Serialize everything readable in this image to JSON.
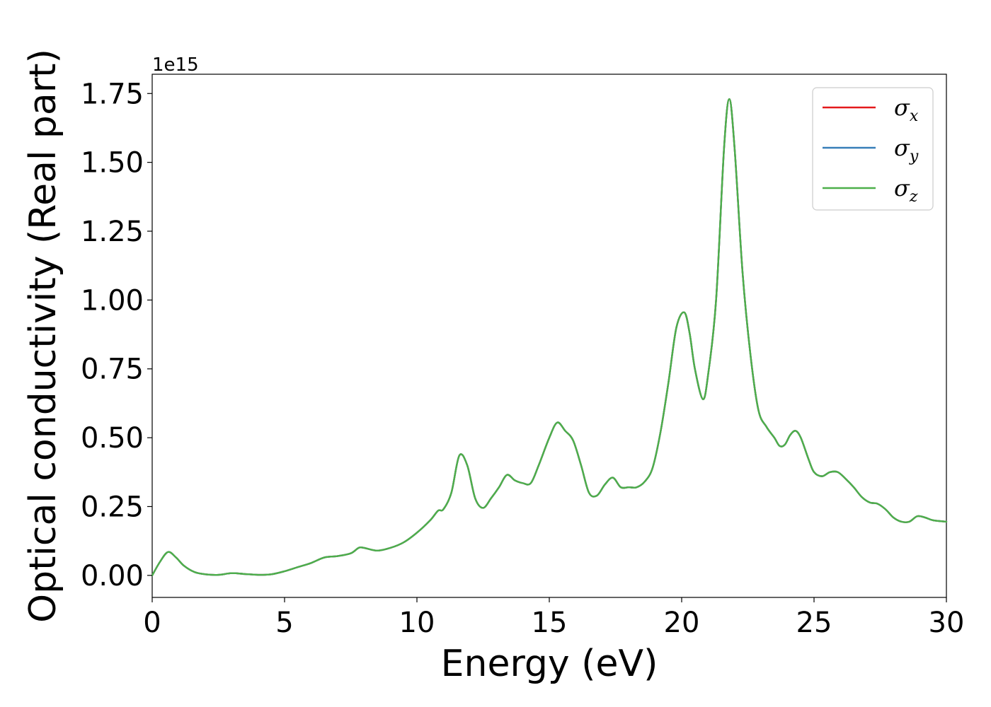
{
  "chart_data": {
    "type": "line",
    "title": "",
    "xlabel": "Energy (eV)",
    "ylabel": "Optical conductivity (Real part)",
    "y_offset_label": "1e15",
    "y_scale": 1000000000000000.0,
    "xlim": [
      0,
      30
    ],
    "ylim": [
      -0.08,
      1.82
    ],
    "xticks": [
      0,
      5,
      10,
      15,
      20,
      25,
      30
    ],
    "xtick_labels": [
      "0",
      "5",
      "10",
      "15",
      "20",
      "25",
      "30"
    ],
    "yticks": [
      0,
      0.25,
      0.5,
      0.75,
      1.0,
      1.25,
      1.5,
      1.75
    ],
    "ytick_labels": [
      "0.00",
      "0.25",
      "0.50",
      "0.75",
      "1.00",
      "1.25",
      "1.50",
      "1.75"
    ],
    "grid": false,
    "legend_position": "top-right",
    "x": [
      0,
      0.3,
      0.6,
      0.9,
      1.2,
      1.6,
      2.0,
      2.5,
      3.0,
      3.5,
      4.0,
      4.5,
      5.0,
      5.5,
      6.0,
      6.5,
      7.0,
      7.5,
      7.8,
      8.0,
      8.5,
      9.0,
      9.5,
      10.0,
      10.5,
      10.8,
      11.0,
      11.3,
      11.6,
      11.9,
      12.2,
      12.5,
      12.8,
      13.1,
      13.4,
      13.7,
      14.0,
      14.3,
      14.6,
      15.0,
      15.3,
      15.6,
      15.9,
      16.2,
      16.5,
      16.8,
      17.1,
      17.4,
      17.7,
      18.0,
      18.3,
      18.6,
      18.9,
      19.2,
      19.5,
      19.8,
      20.1,
      20.3,
      20.5,
      20.8,
      21.0,
      21.3,
      21.6,
      21.8,
      22.0,
      22.3,
      22.6,
      22.9,
      23.2,
      23.5,
      23.7,
      23.9,
      24.1,
      24.3,
      24.5,
      24.8,
      25.0,
      25.3,
      25.6,
      25.9,
      26.2,
      26.5,
      26.8,
      27.1,
      27.4,
      27.7,
      28.0,
      28.3,
      28.6,
      28.9,
      29.2,
      29.5,
      30.0
    ],
    "series": [
      {
        "name": "σ_x",
        "label_main": "σ",
        "label_sub": "x",
        "color": "#e41a1c",
        "values": [
          0.0,
          0.05,
          0.085,
          0.065,
          0.035,
          0.012,
          0.004,
          0.002,
          0.008,
          0.005,
          0.002,
          0.004,
          0.015,
          0.03,
          0.045,
          0.065,
          0.07,
          0.08,
          0.1,
          0.1,
          0.09,
          0.1,
          0.12,
          0.155,
          0.2,
          0.235,
          0.24,
          0.3,
          0.435,
          0.4,
          0.28,
          0.245,
          0.28,
          0.32,
          0.365,
          0.345,
          0.335,
          0.335,
          0.4,
          0.5,
          0.555,
          0.525,
          0.49,
          0.4,
          0.3,
          0.29,
          0.33,
          0.355,
          0.32,
          0.32,
          0.32,
          0.34,
          0.39,
          0.52,
          0.7,
          0.9,
          0.955,
          0.88,
          0.75,
          0.64,
          0.73,
          1.0,
          1.55,
          1.73,
          1.55,
          1.1,
          0.8,
          0.6,
          0.54,
          0.5,
          0.47,
          0.475,
          0.51,
          0.525,
          0.5,
          0.42,
          0.375,
          0.36,
          0.375,
          0.375,
          0.35,
          0.32,
          0.285,
          0.265,
          0.26,
          0.24,
          0.21,
          0.195,
          0.195,
          0.215,
          0.21,
          0.2,
          0.195
        ]
      },
      {
        "name": "σ_y",
        "label_main": "σ",
        "label_sub": "y",
        "color": "#377eb8",
        "values": [
          0.0,
          0.05,
          0.085,
          0.065,
          0.035,
          0.012,
          0.004,
          0.002,
          0.008,
          0.005,
          0.002,
          0.004,
          0.015,
          0.03,
          0.045,
          0.065,
          0.07,
          0.08,
          0.1,
          0.1,
          0.09,
          0.1,
          0.12,
          0.155,
          0.2,
          0.235,
          0.24,
          0.3,
          0.435,
          0.4,
          0.28,
          0.245,
          0.28,
          0.32,
          0.365,
          0.345,
          0.335,
          0.335,
          0.4,
          0.5,
          0.555,
          0.525,
          0.49,
          0.4,
          0.3,
          0.29,
          0.33,
          0.355,
          0.32,
          0.32,
          0.32,
          0.34,
          0.39,
          0.52,
          0.7,
          0.9,
          0.955,
          0.88,
          0.75,
          0.64,
          0.73,
          1.0,
          1.55,
          1.73,
          1.55,
          1.1,
          0.8,
          0.6,
          0.54,
          0.5,
          0.47,
          0.475,
          0.51,
          0.525,
          0.5,
          0.42,
          0.375,
          0.36,
          0.375,
          0.375,
          0.35,
          0.32,
          0.285,
          0.265,
          0.26,
          0.24,
          0.21,
          0.195,
          0.195,
          0.215,
          0.21,
          0.2,
          0.195
        ]
      },
      {
        "name": "σ_z",
        "label_main": "σ",
        "label_sub": "z",
        "color": "#4daf4a",
        "values": [
          0.0,
          0.05,
          0.085,
          0.065,
          0.035,
          0.012,
          0.004,
          0.002,
          0.008,
          0.005,
          0.002,
          0.004,
          0.015,
          0.03,
          0.045,
          0.065,
          0.07,
          0.08,
          0.1,
          0.1,
          0.09,
          0.1,
          0.12,
          0.155,
          0.2,
          0.235,
          0.24,
          0.3,
          0.435,
          0.4,
          0.28,
          0.245,
          0.28,
          0.32,
          0.365,
          0.345,
          0.335,
          0.335,
          0.4,
          0.5,
          0.555,
          0.525,
          0.49,
          0.4,
          0.3,
          0.29,
          0.33,
          0.355,
          0.32,
          0.32,
          0.32,
          0.34,
          0.39,
          0.52,
          0.7,
          0.9,
          0.955,
          0.88,
          0.75,
          0.64,
          0.73,
          1.0,
          1.55,
          1.73,
          1.55,
          1.1,
          0.8,
          0.6,
          0.54,
          0.5,
          0.47,
          0.475,
          0.51,
          0.525,
          0.5,
          0.42,
          0.375,
          0.36,
          0.375,
          0.375,
          0.35,
          0.32,
          0.285,
          0.265,
          0.26,
          0.24,
          0.21,
          0.195,
          0.195,
          0.215,
          0.21,
          0.2,
          0.195
        ]
      }
    ]
  }
}
